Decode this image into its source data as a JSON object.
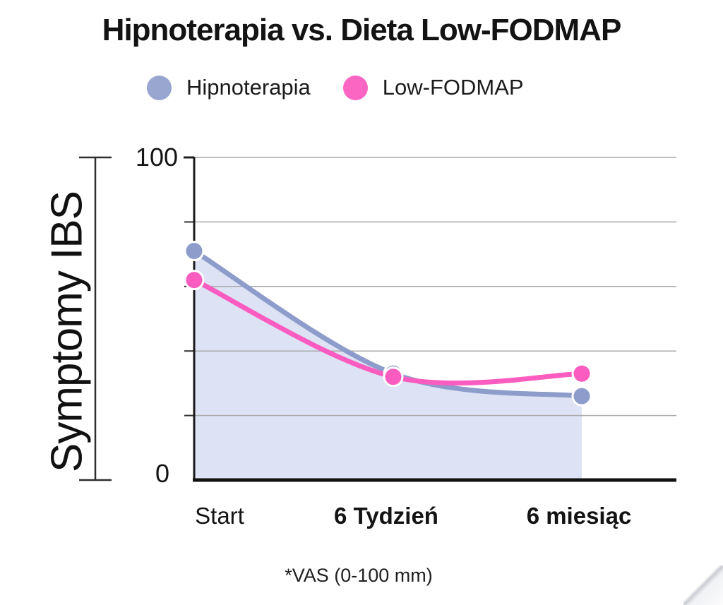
{
  "title": "Hipnoterapia vs. Dieta Low-FODMAP",
  "legend": {
    "items": [
      {
        "label": "Hipnoterapia",
        "color": "#98a6d0"
      },
      {
        "label": "Low-FODMAP",
        "color": "#fb66c3"
      }
    ]
  },
  "y_axis": {
    "title": "Symptomy IBS",
    "top_tick_label": "100",
    "bottom_tick_label": "0"
  },
  "x_axis": {
    "labels": [
      "Start",
      "6 Tydzień",
      "6 miesiąc"
    ]
  },
  "footnote": "*VAS (0-100 mm)",
  "chart_data": {
    "type": "line",
    "title": "Hipnoterapia vs. Dieta Low-FODMAP",
    "categories": [
      "Start",
      "6 Tydzień",
      "6 miesiąc"
    ],
    "series": [
      {
        "name": "Hipnoterapia",
        "color": "#98a6d0",
        "line_color": "#8d9cca",
        "values": [
          71,
          33,
          26
        ],
        "area_fill": "#dde3f5"
      },
      {
        "name": "Low-FODMAP",
        "color": "#fb66c3",
        "line_color": "#fb5cc0",
        "values": [
          62,
          32,
          33
        ],
        "area_fill": null
      }
    ],
    "xlabel": "",
    "ylabel": "Symptomy IBS",
    "ylim": [
      0,
      100
    ],
    "gridline_values": [
      20,
      40,
      60,
      80,
      100
    ],
    "labeled_ticks": [
      0,
      100
    ],
    "minor_tick_values": [
      20,
      40,
      60,
      80
    ],
    "grid": true,
    "legend_position": "top",
    "footnote": "*VAS (0-100 mm)",
    "value_scale_note": "VAS 0-100 mm"
  }
}
